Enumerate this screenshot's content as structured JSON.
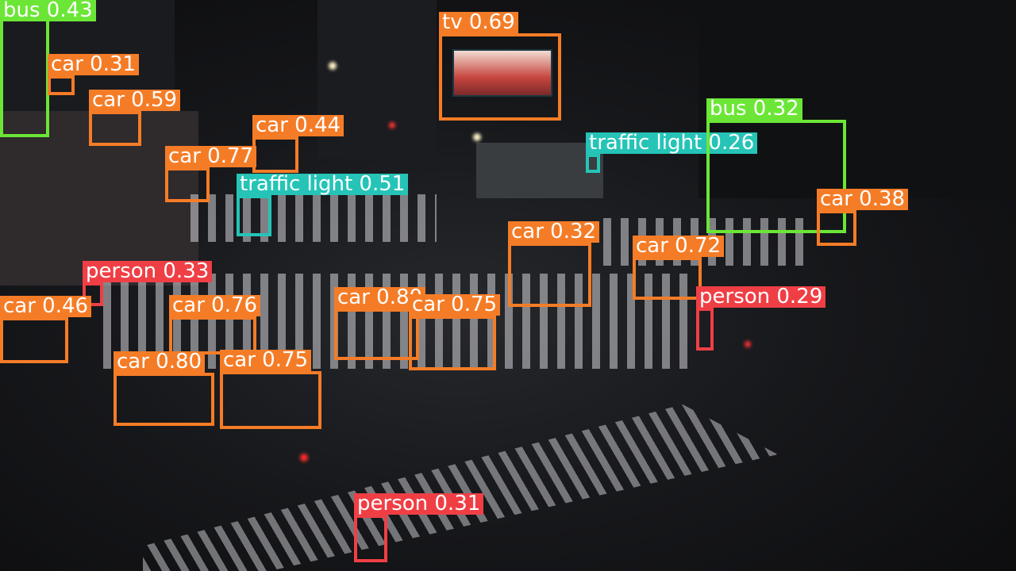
{
  "colors": {
    "car": "#f57c27",
    "bus": "#6be636",
    "tv": "#f57c27",
    "traffic light": "#25c4b7",
    "person": "#ef3f45"
  },
  "detections": [
    {
      "cls": "bus",
      "label": "bus 0.43"
    },
    {
      "cls": "car",
      "label": "car 0.31"
    },
    {
      "cls": "car",
      "label": "car 0.59"
    },
    {
      "cls": "tv",
      "label": "tv 0.69"
    },
    {
      "cls": "car",
      "label": "car 0.44"
    },
    {
      "cls": "car",
      "label": "car 0.77"
    },
    {
      "cls": "traffic light",
      "label": "traffic light 0.51"
    },
    {
      "cls": "traffic light",
      "label": "traffic light 0.26"
    },
    {
      "cls": "bus",
      "label": "bus 0.32"
    },
    {
      "cls": "car",
      "label": "car 0.38"
    },
    {
      "cls": "car",
      "label": "car 0.32"
    },
    {
      "cls": "car",
      "label": "car 0.72"
    },
    {
      "cls": "person",
      "label": "person 0.33"
    },
    {
      "cls": "person",
      "label": "person 0.29"
    },
    {
      "cls": "car",
      "label": "car 0.46"
    },
    {
      "cls": "car",
      "label": "car 0.76"
    },
    {
      "cls": "car",
      "label": "car 0.80"
    },
    {
      "cls": "car",
      "label": "car 0.75"
    },
    {
      "cls": "car",
      "label": "car 0.80"
    },
    {
      "cls": "car",
      "label": "car 0.75"
    },
    {
      "cls": "person",
      "label": "person 0.31"
    }
  ]
}
